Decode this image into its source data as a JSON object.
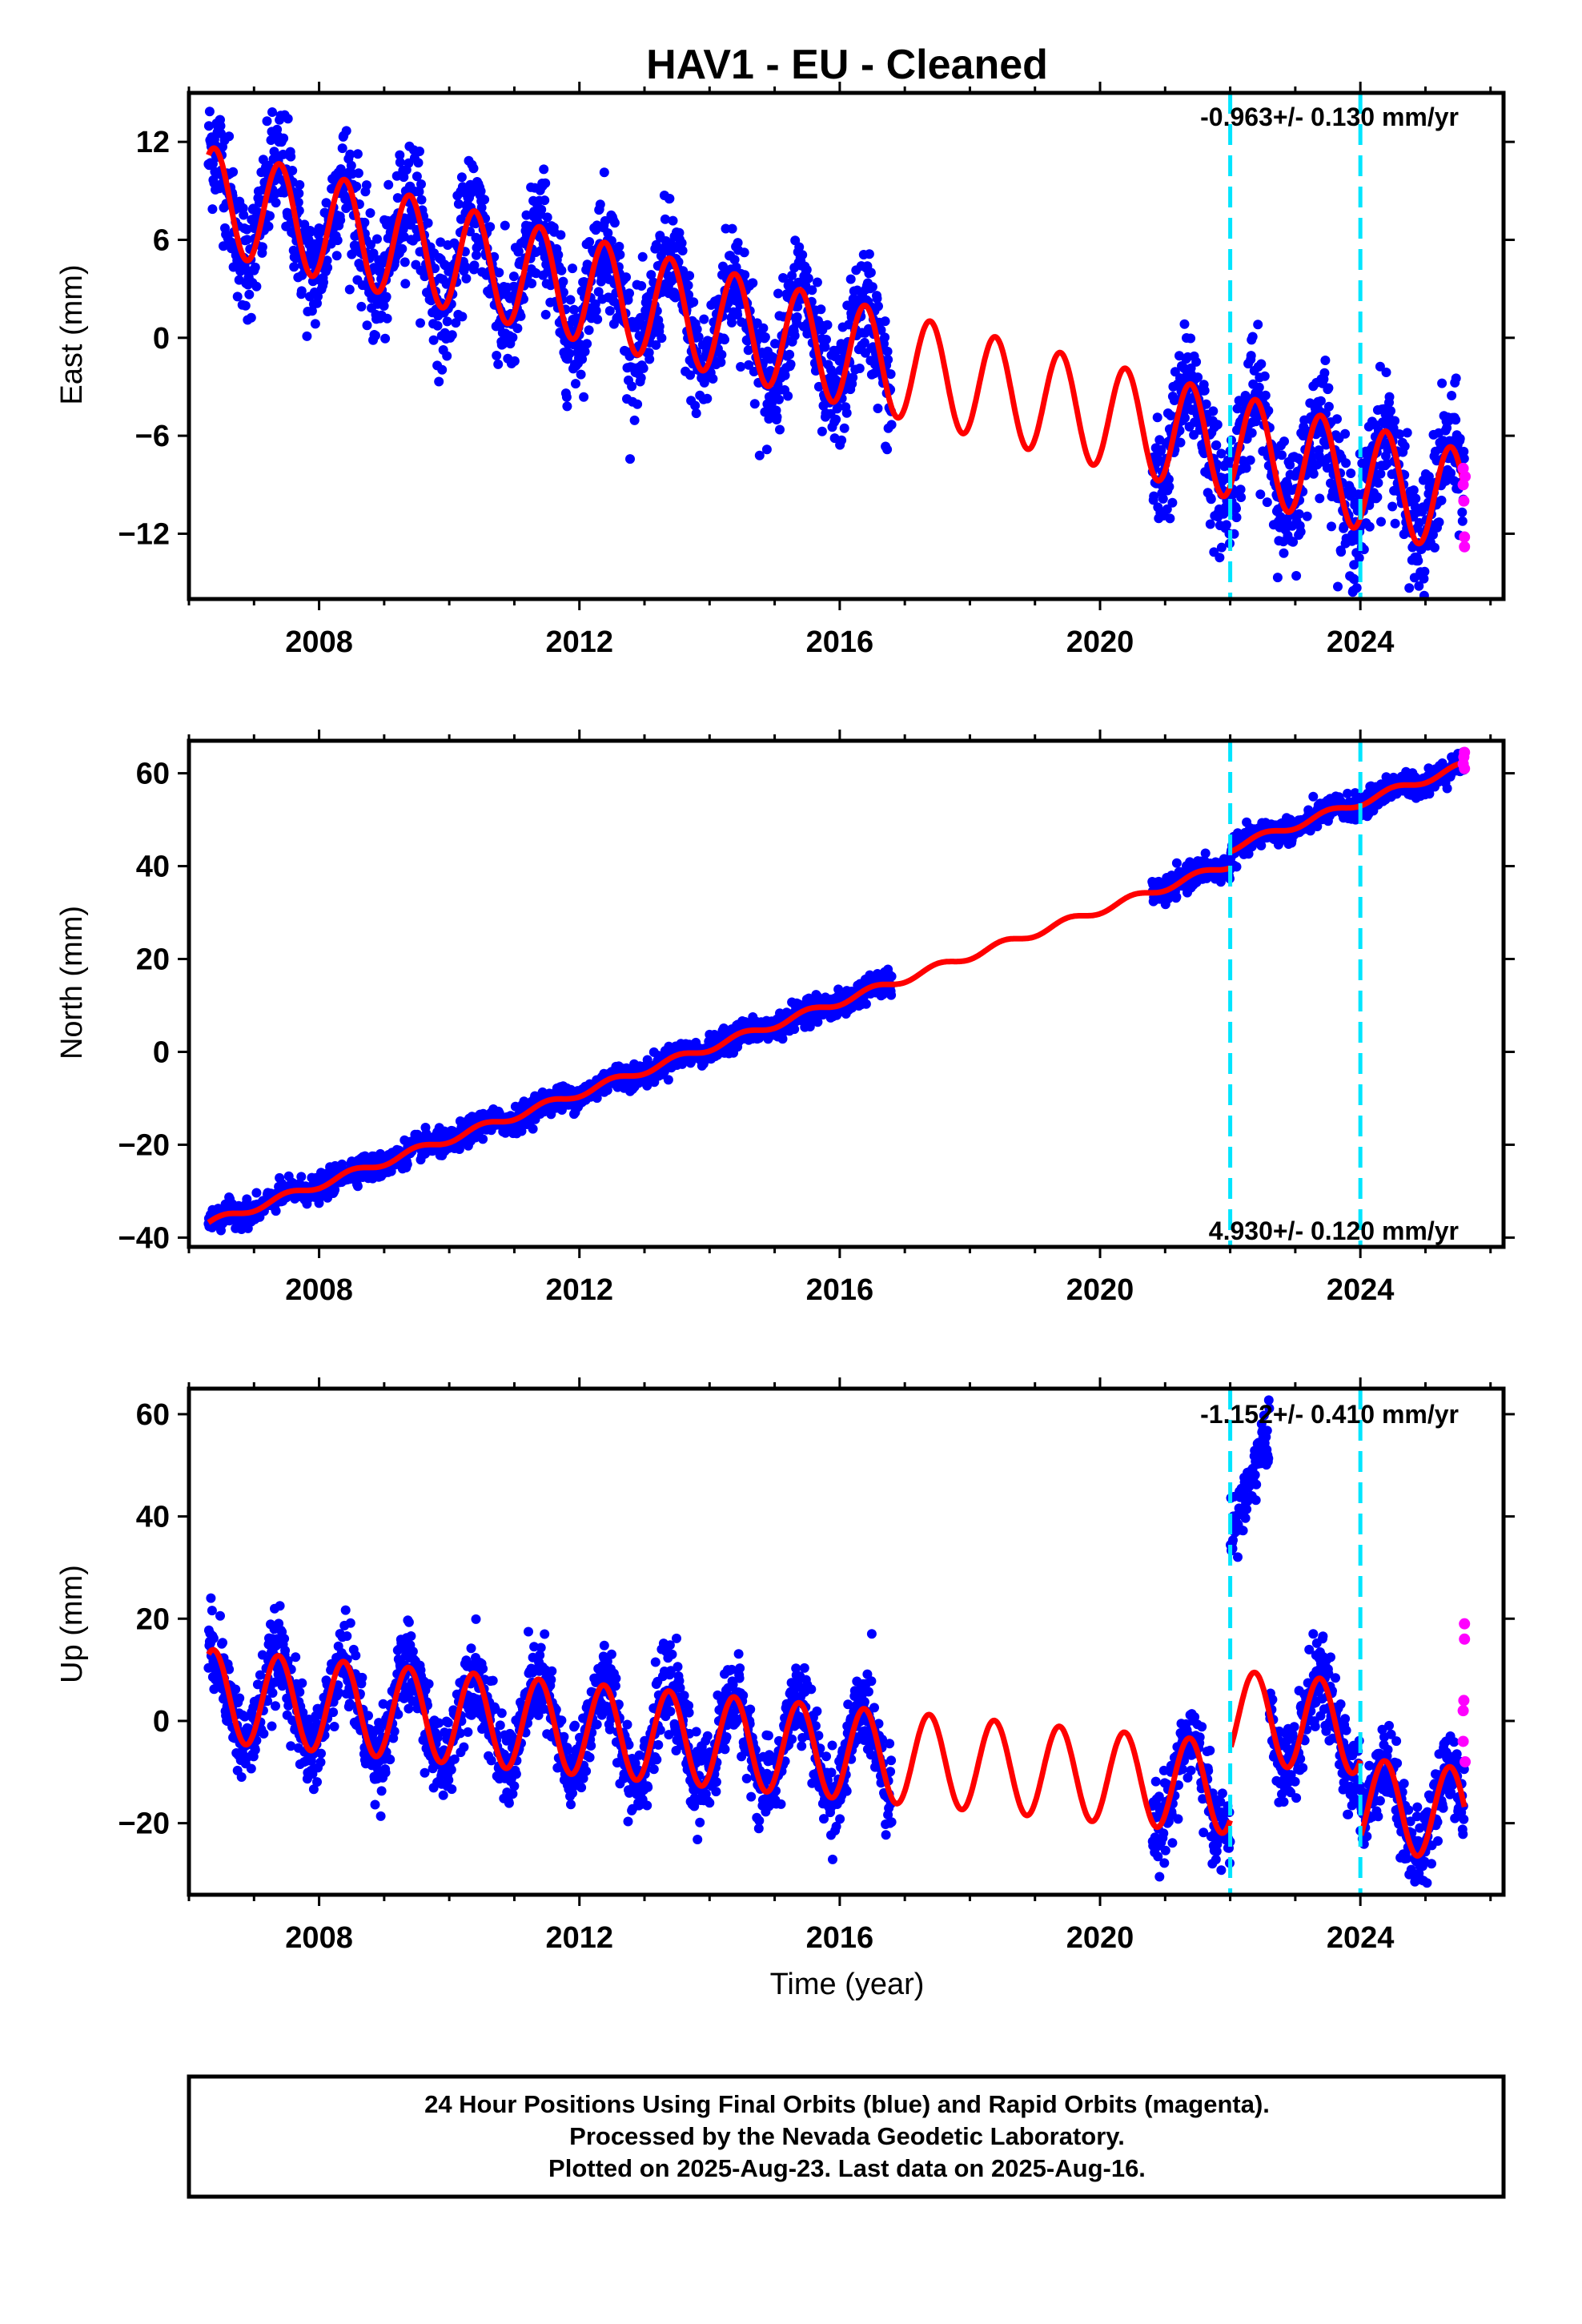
{
  "figure": {
    "title": "HAV1  - EU - Cleaned",
    "xlabel": "Time (year)",
    "footer": [
      "24 Hour Positions Using Final Orbits (blue) and Rapid Orbits (magenta).",
      "Processed by the Nevada Geodetic Laboratory.",
      "Plotted on 2025-Aug-23. Last data on 2025-Aug-16."
    ],
    "colors": {
      "final": "#0000ff",
      "rapid": "#ff00ff",
      "model": "#ff0000",
      "steps": "#00e5ff",
      "frame": "#000000"
    }
  },
  "chart_data": [
    {
      "type": "scatter",
      "ylabel": "East (mm)",
      "rate_label": "-0.963+/- 0.130 mm/yr",
      "xlim": [
        2006.0,
        2026.2
      ],
      "ylim": [
        -16,
        15
      ],
      "xticks": [
        2008,
        2012,
        2016,
        2020,
        2024
      ],
      "yticks": [
        12,
        6,
        0,
        -6,
        -12
      ],
      "ytick_labels": [
        "12",
        "6",
        "0",
        "−6",
        "−12"
      ],
      "steps": [
        2022.0,
        2024.0
      ],
      "gaps": [
        [
          2016.8,
          2020.8
        ]
      ],
      "model": {
        "t0": 2006.3,
        "y0": 8.5,
        "rate": -0.963,
        "amp": 3.2,
        "phase": 1.0,
        "offsets": [
          {
            "t": 2022.0,
            "dy": 0.0
          },
          {
            "t": 2024.0,
            "dy": 0.0
          }
        ]
      },
      "final_series": {
        "name": "Final Orbits",
        "start": 2006.3,
        "end": 2025.6,
        "scatter": 1.8
      },
      "rapid_points": [
        [
          2025.58,
          -8.0
        ],
        [
          2025.58,
          -9.0
        ],
        [
          2025.59,
          -10.0
        ],
        [
          2025.6,
          -12.2
        ],
        [
          2025.6,
          -12.8
        ],
        [
          2025.61,
          -8.5
        ]
      ]
    },
    {
      "type": "scatter",
      "ylabel": "North (mm)",
      "rate_label": "4.930+/- 0.120 mm/yr",
      "xlim": [
        2006.0,
        2026.2
      ],
      "ylim": [
        -42,
        67
      ],
      "xticks": [
        2008,
        2012,
        2016,
        2020,
        2024
      ],
      "yticks": [
        60,
        40,
        20,
        0,
        -20,
        -40
      ],
      "ytick_labels": [
        "60",
        "40",
        "20",
        "0",
        "−20",
        "−40"
      ],
      "steps": [
        2022.0,
        2024.0
      ],
      "gaps": [
        [
          2016.8,
          2020.8
        ]
      ],
      "model": {
        "t0": 2006.3,
        "y0": -37.0,
        "rate": 4.93,
        "amp": 0.8,
        "phase": 0.3,
        "offsets": [
          {
            "t": 2022.0,
            "dy": 3.5
          },
          {
            "t": 2024.0,
            "dy": 0.0
          }
        ]
      },
      "final_series": {
        "name": "Final Orbits",
        "start": 2006.3,
        "end": 2025.6,
        "scatter": 1.3
      },
      "rapid_points": [
        [
          2025.58,
          62.0
        ],
        [
          2025.59,
          63.5
        ],
        [
          2025.6,
          64.5
        ],
        [
          2025.6,
          61.0
        ]
      ]
    },
    {
      "type": "scatter",
      "ylabel": "Up (mm)",
      "rate_label": "-1.152+/- 0.410 mm/yr",
      "xlim": [
        2006.0,
        2026.2
      ],
      "ylim": [
        -34,
        65
      ],
      "xticks": [
        2008,
        2012,
        2016,
        2020,
        2024
      ],
      "yticks": [
        60,
        40,
        20,
        0,
        -20
      ],
      "ytick_labels": [
        "60",
        "40",
        "20",
        "0",
        "−20"
      ],
      "steps": [
        2022.0,
        2024.0
      ],
      "gaps": [
        [
          2016.8,
          2020.8
        ]
      ],
      "model": {
        "t0": 2006.3,
        "y0": 5.0,
        "rate": -1.152,
        "amp": 9.0,
        "phase": 1.1,
        "offsets": [
          {
            "t": 2022.0,
            "dy": 14.0
          },
          {
            "t": 2024.0,
            "dy": -15.0
          }
        ]
      },
      "final_series": {
        "name": "Final Orbits",
        "start": 2006.3,
        "end": 2025.6,
        "scatter": 4.0
      },
      "outlier_cluster": {
        "start": 2022.0,
        "end": 2022.6,
        "y_from": 35,
        "y_to": 57
      },
      "rapid_points": [
        [
          2025.58,
          2.0
        ],
        [
          2025.58,
          -4.0
        ],
        [
          2025.59,
          4.0
        ],
        [
          2025.6,
          16.0
        ],
        [
          2025.6,
          19.0
        ],
        [
          2025.61,
          -8.0
        ]
      ]
    }
  ]
}
